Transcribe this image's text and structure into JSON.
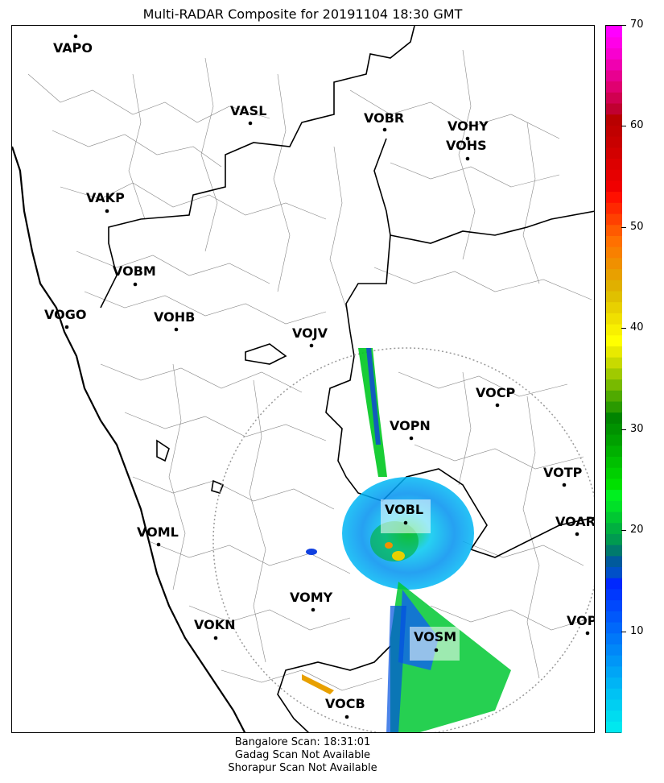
{
  "title": "Multi-RADAR Composite for 20191104 18:30 GMT",
  "stations": [
    {
      "code": "VAPO"
    },
    {
      "code": "VASL"
    },
    {
      "code": "VOBR"
    },
    {
      "code": "VOHY"
    },
    {
      "code": "VOHS"
    },
    {
      "code": "VAKP"
    },
    {
      "code": "VOBM"
    },
    {
      "code": "VOGO"
    },
    {
      "code": "VOHB"
    },
    {
      "code": "VOJV"
    },
    {
      "code": "VOCP"
    },
    {
      "code": "VOPN"
    },
    {
      "code": "VOTP"
    },
    {
      "code": "VOBL"
    },
    {
      "code": "VOAR"
    },
    {
      "code": "VOML"
    },
    {
      "code": "VOMY"
    },
    {
      "code": "VOKN"
    },
    {
      "code": "VOPC"
    },
    {
      "code": "VOSM"
    },
    {
      "code": "VOCB"
    }
  ],
  "colorbar": {
    "min": 0,
    "max": 70,
    "ticks": [
      "10",
      "20",
      "30",
      "40",
      "50",
      "60",
      "70"
    ],
    "colors": [
      "#00e8ef",
      "#00dcf0",
      "#00cff2",
      "#00c2f4",
      "#00b4f5",
      "#00a5f6",
      "#0096f7",
      "#0087f8",
      "#0078f9",
      "#0068fa",
      "#0058fb",
      "#0048fc",
      "#0038fd",
      "#0028fe",
      "#0050c8",
      "#005a9c",
      "#007a6c",
      "#009a50",
      "#00b040",
      "#00c832",
      "#00e028",
      "#00f020",
      "#00e000",
      "#00d000",
      "#00c000",
      "#00b000",
      "#00a000",
      "#009200",
      "#008400",
      "#2a9a00",
      "#50aa00",
      "#78ba00",
      "#a0ca00",
      "#c8da00",
      "#e8ea00",
      "#ffff00",
      "#f8f000",
      "#f0e000",
      "#e8d000",
      "#e0c000",
      "#e0b000",
      "#e8a000",
      "#f09000",
      "#f88000",
      "#ff7000",
      "#ff5a00",
      "#ff4000",
      "#ff2800",
      "#ff1000",
      "#f00000",
      "#e60000",
      "#dc0000",
      "#d20000",
      "#c80000",
      "#c00000",
      "#b80000",
      "#c00030",
      "#d00050",
      "#e00070",
      "#e80090",
      "#f000b0",
      "#f800d0",
      "#ff00e8",
      "#ff00ff"
    ]
  },
  "footer": {
    "line1": "Bangalore Scan: 18:31:01",
    "line2": "Gadag Scan Not Available",
    "line3": "Shorapur Scan Not Available"
  }
}
